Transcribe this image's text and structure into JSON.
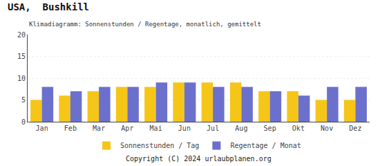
{
  "chart_data": {
    "type": "bar",
    "title": "USA,  Bushkill",
    "subtitle": "Klimadiagramm: Sonnenstunden / Regentage, monatlich, gemittelt",
    "categories": [
      "Jan",
      "Feb",
      "Mar",
      "Apr",
      "Mai",
      "Jun",
      "Jul",
      "Aug",
      "Sep",
      "Okt",
      "Nov",
      "Dez"
    ],
    "series": [
      {
        "name": "Sonnenstunden / Tag",
        "color": "#F5C518",
        "values": [
          5.0,
          6.0,
          7.0,
          8.0,
          8.0,
          9.0,
          9.0,
          9.0,
          7.0,
          7.0,
          5.0,
          5.0
        ]
      },
      {
        "name": "Regentage / Monat",
        "color": "#6B70CC",
        "values": [
          8.0,
          7.0,
          8.0,
          8.0,
          9.0,
          9.0,
          8.0,
          8.0,
          7.0,
          6.0,
          8.0,
          8.0
        ]
      }
    ],
    "ylim": [
      0,
      20
    ],
    "yticks": [
      0,
      5,
      10,
      15,
      20
    ],
    "grid": true,
    "legend": "bottom",
    "annotations": [
      "Copyright (C) 2024 urlaubplanen.org"
    ]
  }
}
